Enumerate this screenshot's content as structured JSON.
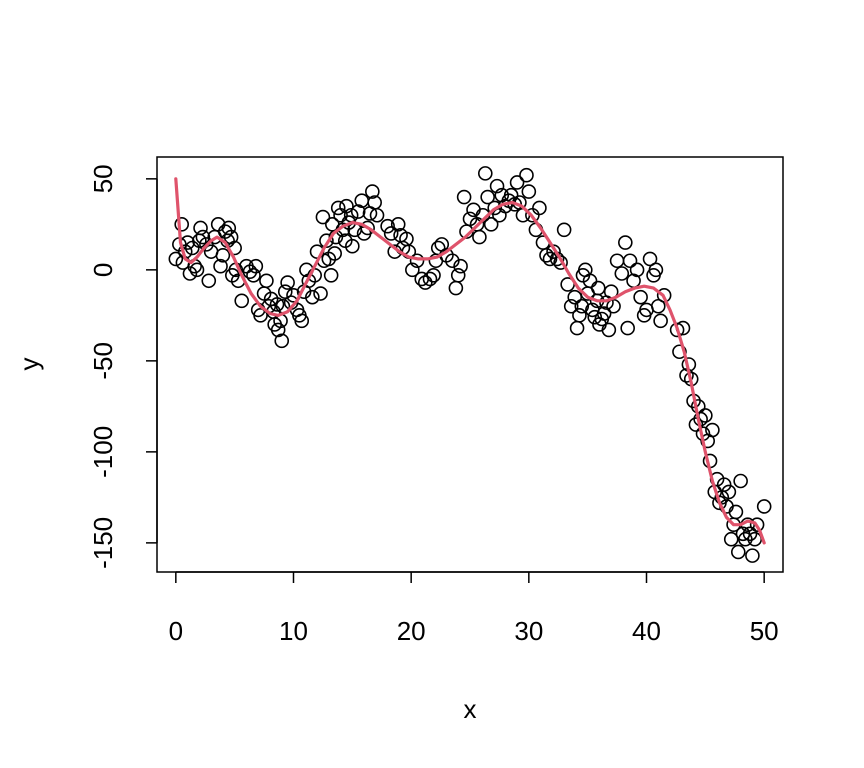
{
  "chart_data": {
    "type": "scatter",
    "xlabel": "x",
    "ylabel": "y",
    "xlim": [
      -1.6,
      51.6
    ],
    "ylim": [
      -166,
      62
    ],
    "xticks": [
      0,
      10,
      20,
      30,
      40,
      50
    ],
    "yticks": [
      50,
      0,
      -50,
      -100,
      -150
    ],
    "grid": false,
    "colors": {
      "points": "#000000",
      "fit_line": "#DF536B"
    },
    "points": [
      [
        0.0,
        6
      ],
      [
        0.3,
        14
      ],
      [
        0.5,
        25
      ],
      [
        0.6,
        4
      ],
      [
        0.8,
        10
      ],
      [
        1.0,
        15
      ],
      [
        1.2,
        -2
      ],
      [
        1.4,
        12
      ],
      [
        1.6,
        2
      ],
      [
        1.8,
        0
      ],
      [
        2.0,
        16
      ],
      [
        2.1,
        23
      ],
      [
        2.3,
        18
      ],
      [
        2.6,
        14
      ],
      [
        2.8,
        -6
      ],
      [
        3.0,
        10
      ],
      [
        3.3,
        18
      ],
      [
        3.6,
        25
      ],
      [
        3.8,
        2
      ],
      [
        4.0,
        8
      ],
      [
        4.2,
        21
      ],
      [
        4.4,
        16
      ],
      [
        4.5,
        23
      ],
      [
        4.7,
        18
      ],
      [
        4.8,
        -3
      ],
      [
        5.0,
        12
      ],
      [
        5.1,
        0
      ],
      [
        5.3,
        -6
      ],
      [
        5.6,
        -17
      ],
      [
        6.0,
        2
      ],
      [
        6.3,
        -1
      ],
      [
        6.6,
        -3
      ],
      [
        6.8,
        2
      ],
      [
        7.0,
        -22
      ],
      [
        7.2,
        -25
      ],
      [
        7.5,
        -13
      ],
      [
        7.7,
        -6
      ],
      [
        7.9,
        -20
      ],
      [
        8.1,
        -16
      ],
      [
        8.3,
        -23
      ],
      [
        8.4,
        -30
      ],
      [
        8.6,
        -19
      ],
      [
        8.7,
        -33
      ],
      [
        8.9,
        -28
      ],
      [
        9.0,
        -39
      ],
      [
        9.1,
        -20
      ],
      [
        9.3,
        -12
      ],
      [
        9.5,
        -7
      ],
      [
        9.8,
        -18
      ],
      [
        10.0,
        -14
      ],
      [
        10.3,
        -22
      ],
      [
        10.5,
        -25
      ],
      [
        10.7,
        -28
      ],
      [
        10.9,
        -12
      ],
      [
        11.1,
        0
      ],
      [
        11.3,
        -6
      ],
      [
        11.6,
        -15
      ],
      [
        11.8,
        -3
      ],
      [
        12.0,
        10
      ],
      [
        12.3,
        -13
      ],
      [
        12.5,
        29
      ],
      [
        12.6,
        5
      ],
      [
        12.8,
        16
      ],
      [
        13.0,
        6
      ],
      [
        13.2,
        -3
      ],
      [
        13.3,
        25
      ],
      [
        13.5,
        9
      ],
      [
        13.6,
        18
      ],
      [
        13.8,
        34
      ],
      [
        14.0,
        30
      ],
      [
        14.2,
        22
      ],
      [
        14.4,
        16
      ],
      [
        14.5,
        35
      ],
      [
        14.7,
        26
      ],
      [
        14.9,
        30
      ],
      [
        15.0,
        13
      ],
      [
        15.2,
        22
      ],
      [
        15.5,
        32
      ],
      [
        15.8,
        38
      ],
      [
        16.0,
        20
      ],
      [
        16.3,
        23
      ],
      [
        16.5,
        31
      ],
      [
        16.7,
        43
      ],
      [
        16.9,
        37
      ],
      [
        17.1,
        30
      ],
      [
        18.0,
        24
      ],
      [
        18.3,
        20
      ],
      [
        18.6,
        10
      ],
      [
        18.9,
        25
      ],
      [
        19.1,
        19
      ],
      [
        19.3,
        12
      ],
      [
        19.6,
        17
      ],
      [
        19.8,
        10
      ],
      [
        20.1,
        0
      ],
      [
        20.5,
        5
      ],
      [
        20.9,
        -5
      ],
      [
        21.2,
        -7
      ],
      [
        21.6,
        -5
      ],
      [
        21.9,
        -3
      ],
      [
        22.1,
        5
      ],
      [
        22.3,
        12
      ],
      [
        22.6,
        14
      ],
      [
        23.0,
        8
      ],
      [
        23.5,
        5
      ],
      [
        23.8,
        -10
      ],
      [
        24.0,
        -3
      ],
      [
        24.2,
        2
      ],
      [
        24.5,
        40
      ],
      [
        24.7,
        21
      ],
      [
        25.0,
        28
      ],
      [
        25.3,
        33
      ],
      [
        25.6,
        25
      ],
      [
        25.8,
        18
      ],
      [
        26.1,
        30
      ],
      [
        26.3,
        53
      ],
      [
        26.5,
        40
      ],
      [
        26.8,
        25
      ],
      [
        27.1,
        34
      ],
      [
        27.3,
        46
      ],
      [
        27.5,
        30
      ],
      [
        27.7,
        41
      ],
      [
        28.0,
        35
      ],
      [
        28.3,
        38
      ],
      [
        28.5,
        41
      ],
      [
        28.8,
        36
      ],
      [
        29.0,
        48
      ],
      [
        29.2,
        37
      ],
      [
        29.5,
        30
      ],
      [
        29.8,
        52
      ],
      [
        30.0,
        43
      ],
      [
        30.3,
        30
      ],
      [
        30.6,
        22
      ],
      [
        30.9,
        34
      ],
      [
        31.2,
        15
      ],
      [
        31.5,
        8
      ],
      [
        31.8,
        6
      ],
      [
        32.1,
        10
      ],
      [
        32.4,
        6
      ],
      [
        32.7,
        4
      ],
      [
        33.0,
        22
      ],
      [
        33.3,
        -8
      ],
      [
        33.6,
        -20
      ],
      [
        33.9,
        -15
      ],
      [
        34.1,
        -32
      ],
      [
        34.3,
        -25
      ],
      [
        34.5,
        -20
      ],
      [
        34.6,
        -3
      ],
      [
        34.8,
        0
      ],
      [
        35.0,
        -13
      ],
      [
        35.2,
        -6
      ],
      [
        35.4,
        -22
      ],
      [
        35.6,
        -26
      ],
      [
        35.8,
        -17
      ],
      [
        35.9,
        -10
      ],
      [
        36.0,
        -30
      ],
      [
        36.2,
        -27
      ],
      [
        36.4,
        -24
      ],
      [
        36.6,
        -18
      ],
      [
        36.8,
        -33
      ],
      [
        37.0,
        -12
      ],
      [
        37.2,
        -20
      ],
      [
        37.5,
        5
      ],
      [
        37.9,
        -2
      ],
      [
        38.2,
        15
      ],
      [
        38.4,
        -32
      ],
      [
        38.6,
        5
      ],
      [
        38.9,
        -6
      ],
      [
        39.2,
        0
      ],
      [
        39.5,
        -15
      ],
      [
        39.8,
        -25
      ],
      [
        40.0,
        -22
      ],
      [
        40.3,
        6
      ],
      [
        40.6,
        -3
      ],
      [
        40.8,
        0
      ],
      [
        41.0,
        -20
      ],
      [
        41.2,
        -28
      ],
      [
        41.5,
        -14
      ],
      [
        42.6,
        -33
      ],
      [
        42.8,
        -45
      ],
      [
        43.1,
        -32
      ],
      [
        43.4,
        -58
      ],
      [
        43.6,
        -52
      ],
      [
        43.8,
        -60
      ],
      [
        44.0,
        -72
      ],
      [
        44.2,
        -85
      ],
      [
        44.4,
        -75
      ],
      [
        44.6,
        -82
      ],
      [
        44.8,
        -90
      ],
      [
        45.0,
        -80
      ],
      [
        45.2,
        -94
      ],
      [
        45.4,
        -105
      ],
      [
        45.6,
        -88
      ],
      [
        45.8,
        -122
      ],
      [
        46.0,
        -115
      ],
      [
        46.2,
        -128
      ],
      [
        46.4,
        -125
      ],
      [
        46.6,
        -118
      ],
      [
        46.8,
        -130
      ],
      [
        47.0,
        -122
      ],
      [
        47.2,
        -148
      ],
      [
        47.4,
        -140
      ],
      [
        47.6,
        -133
      ],
      [
        47.8,
        -155
      ],
      [
        48.0,
        -116
      ],
      [
        48.2,
        -145
      ],
      [
        48.4,
        -148
      ],
      [
        48.6,
        -140
      ],
      [
        48.8,
        -145
      ],
      [
        49.0,
        -157
      ],
      [
        49.2,
        -148
      ],
      [
        49.4,
        -140
      ],
      [
        50.0,
        -130
      ]
    ],
    "fit_line": [
      [
        0.0,
        50
      ],
      [
        0.4,
        15
      ],
      [
        0.8,
        6
      ],
      [
        1.3,
        4
      ],
      [
        1.8,
        7
      ],
      [
        2.4,
        12
      ],
      [
        3.0,
        16
      ],
      [
        3.5,
        18
      ],
      [
        4.2,
        15
      ],
      [
        4.9,
        7
      ],
      [
        5.6,
        -3
      ],
      [
        6.4,
        -13
      ],
      [
        7.2,
        -20
      ],
      [
        8.0,
        -24
      ],
      [
        8.7,
        -25
      ],
      [
        9.5,
        -23
      ],
      [
        10.3,
        -17
      ],
      [
        11.0,
        -8
      ],
      [
        11.8,
        2
      ],
      [
        12.6,
        12
      ],
      [
        13.4,
        20
      ],
      [
        14.2,
        24
      ],
      [
        15.0,
        26
      ],
      [
        15.8,
        25
      ],
      [
        16.6,
        22
      ],
      [
        17.4,
        18
      ],
      [
        18.2,
        14
      ],
      [
        19.0,
        10
      ],
      [
        19.8,
        7
      ],
      [
        20.6,
        6
      ],
      [
        21.4,
        6
      ],
      [
        22.2,
        7
      ],
      [
        23.0,
        10
      ],
      [
        23.8,
        14
      ],
      [
        24.6,
        18
      ],
      [
        25.4,
        23
      ],
      [
        26.2,
        28
      ],
      [
        27.0,
        33
      ],
      [
        27.8,
        36
      ],
      [
        28.6,
        37
      ],
      [
        29.4,
        35
      ],
      [
        30.2,
        30
      ],
      [
        31.0,
        23
      ],
      [
        31.8,
        15
      ],
      [
        32.6,
        7
      ],
      [
        33.4,
        -2
      ],
      [
        34.2,
        -10
      ],
      [
        35.0,
        -15
      ],
      [
        35.8,
        -17
      ],
      [
        36.6,
        -17
      ],
      [
        37.4,
        -15
      ],
      [
        38.2,
        -12
      ],
      [
        39.0,
        -10
      ],
      [
        39.8,
        -9
      ],
      [
        40.6,
        -10
      ],
      [
        41.4,
        -14
      ],
      [
        42.0,
        -22
      ],
      [
        42.6,
        -32
      ],
      [
        43.2,
        -45
      ],
      [
        43.8,
        -62
      ],
      [
        44.4,
        -82
      ],
      [
        45.0,
        -100
      ],
      [
        45.6,
        -116
      ],
      [
        46.2,
        -128
      ],
      [
        46.8,
        -136
      ],
      [
        47.4,
        -140
      ],
      [
        48.0,
        -140
      ],
      [
        48.6,
        -138
      ],
      [
        49.2,
        -139
      ],
      [
        49.6,
        -143
      ],
      [
        50.0,
        -150
      ]
    ]
  }
}
